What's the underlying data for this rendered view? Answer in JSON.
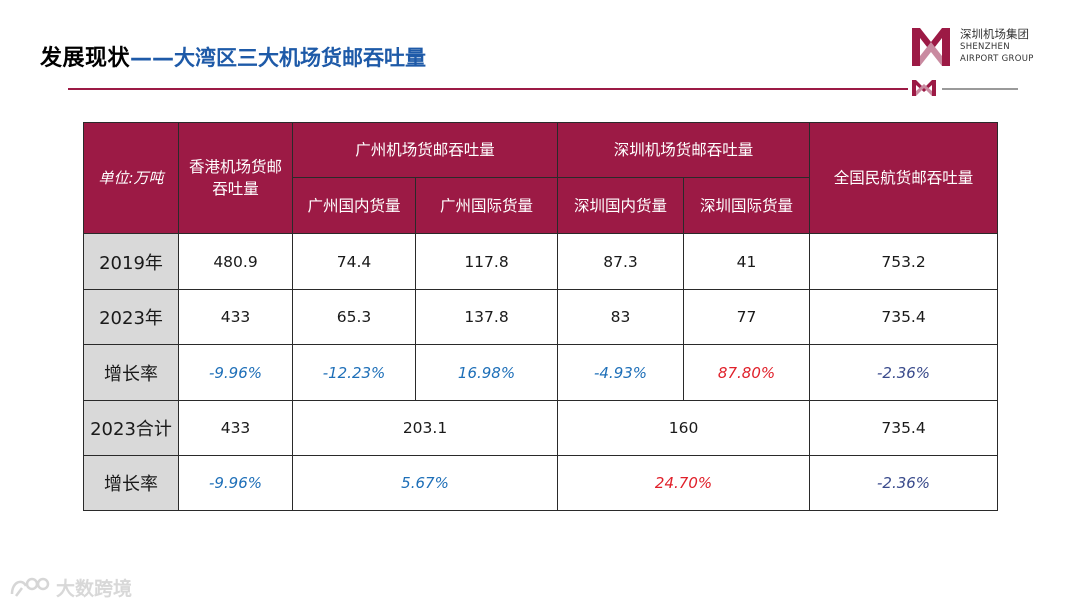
{
  "header": {
    "title_main": "发展现状",
    "title_sep": "——",
    "title_sub": "大湾区三大机场货邮吞吐量"
  },
  "logo": {
    "cn": "深圳机场集团",
    "en_line1": "SHENZHEN",
    "en_line2": "AIRPORT GROUP",
    "brand_color": "#9c1a45"
  },
  "table": {
    "unit_label": "单位:万吨",
    "col_hk": "香港机场货邮吞吐量",
    "col_gz_group": "广州机场货邮吞吐量",
    "col_gz_dom": "广州国内货量",
    "col_gz_intl": "广州国际货量",
    "col_sz_group": "深圳机场货邮吞吐量",
    "col_sz_dom": "深圳国内货量",
    "col_sz_intl": "深圳国际货量",
    "col_national": "全国民航货邮吞吐量",
    "header_color": "#9c1a45",
    "rows": [
      {
        "label": "2019年",
        "hk": "480.9",
        "gz_dom": "74.4",
        "gz_intl": "117.8",
        "sz_dom": "87.3",
        "sz_intl": "41",
        "national": "753.2"
      },
      {
        "label": "2023年",
        "hk": "433",
        "gz_dom": "65.3",
        "gz_intl": "137.8",
        "sz_dom": "83",
        "sz_intl": "77",
        "national": "735.4"
      },
      {
        "label": "增长率",
        "hk": "-9.96%",
        "gz_dom": "-12.23%",
        "gz_intl": "16.98%",
        "sz_dom": "-4.93%",
        "sz_intl": "87.80%",
        "national": "-2.36%"
      }
    ],
    "total_row": {
      "label": "2023合计",
      "hk": "433",
      "gz": "203.1",
      "sz": "160",
      "national": "735.4"
    },
    "total_growth_row": {
      "label": "增长率",
      "hk": "-9.96%",
      "gz": "5.67%",
      "sz": "24.70%",
      "national": "-2.36%"
    }
  },
  "watermark": {
    "text": "大数跨境"
  }
}
